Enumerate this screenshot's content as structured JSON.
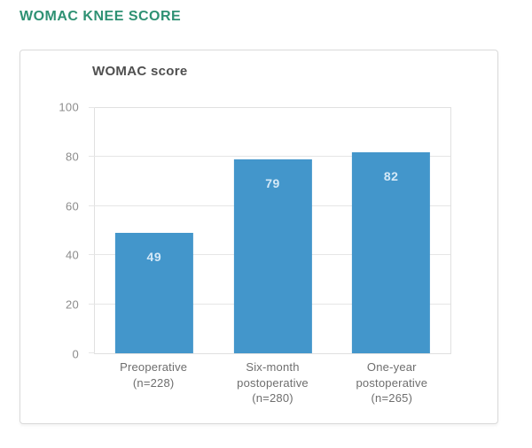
{
  "page": {
    "heading": "WOMAC KNEE SCORE"
  },
  "colors": {
    "heading": "#2e9173",
    "card_border": "#dadada",
    "chart_title": "#4f4f4f",
    "plot_border": "#e0e0e0",
    "grid": "#e6e6e6",
    "axis_text": "#8c8c8c",
    "xaxis_text": "#6e6e6e",
    "bar": "#4396cb",
    "bar_label": "#d5e9f7"
  },
  "chart_data": {
    "type": "bar",
    "title": "WOMAC score",
    "categories": [
      "Preoperative\n(n=228)",
      "Six-month\npostoperative\n(n=280)",
      "One-year\npostoperative\n(n=265)"
    ],
    "values": [
      49,
      79,
      82
    ],
    "data_labels": [
      "49",
      "79",
      "82"
    ],
    "xlabel": "",
    "ylabel": "",
    "ylim": [
      0,
      100
    ],
    "yticks": [
      0,
      20,
      40,
      60,
      80,
      100
    ],
    "grid": true,
    "legend_position": "none",
    "bar_color": "#4396cb"
  }
}
